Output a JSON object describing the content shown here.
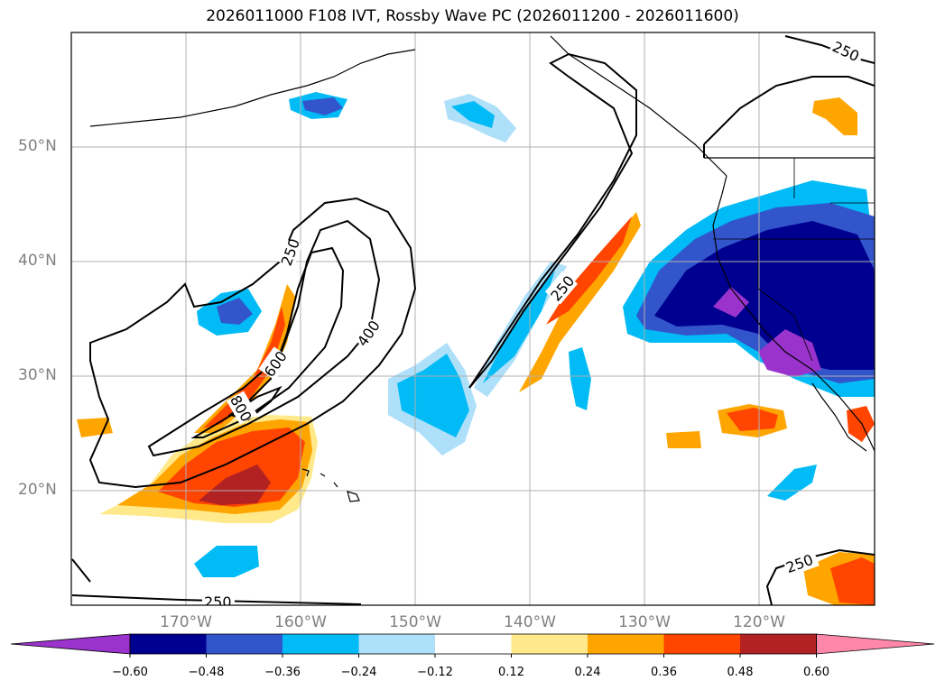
{
  "title": "2026011000 F108 IVT, Rossby Wave PC (2026011200 - 2026011600)",
  "latitude_labels": [
    {
      "text": "50°N",
      "lat": 50
    },
    {
      "text": "40°N",
      "lat": 40
    },
    {
      "text": "30°N",
      "lat": 30
    },
    {
      "text": "20°N",
      "lat": 20
    }
  ],
  "longitude_labels": [
    {
      "text": "170°W",
      "lon": -170
    },
    {
      "text": "160°W",
      "lon": -160
    },
    {
      "text": "150°W",
      "lon": -150
    },
    {
      "text": "140°W",
      "lon": -140
    },
    {
      "text": "130°W",
      "lon": -130
    },
    {
      "text": "120°W",
      "lon": -120
    }
  ],
  "map_extent": {
    "lon_min": -180,
    "lon_max": -110,
    "lat_min": 10,
    "lat_max": 60
  },
  "contour_labels": [
    {
      "text": "250"
    },
    {
      "text": "400"
    },
    {
      "text": "600"
    },
    {
      "text": "800"
    },
    {
      "text": "250"
    },
    {
      "text": "250"
    },
    {
      "text": "250"
    },
    {
      "text": "250"
    }
  ],
  "colorbar": {
    "ticks": [
      "−0.60",
      "−0.48",
      "−0.36",
      "−0.24",
      "−0.12",
      "0.12",
      "0.24",
      "0.36",
      "0.48",
      "0.60"
    ],
    "colors": [
      "#9933cc",
      "#000090",
      "#3355cc",
      "#00bbf5",
      "#aee0fa",
      "#ffffff",
      "#ffe98a",
      "#ffa500",
      "#ff4500",
      "#b22222",
      "#ff88aa"
    ]
  },
  "colors": {
    "frame": "#000000",
    "grid": "#b0b0b0",
    "axis_label": "#808080"
  }
}
